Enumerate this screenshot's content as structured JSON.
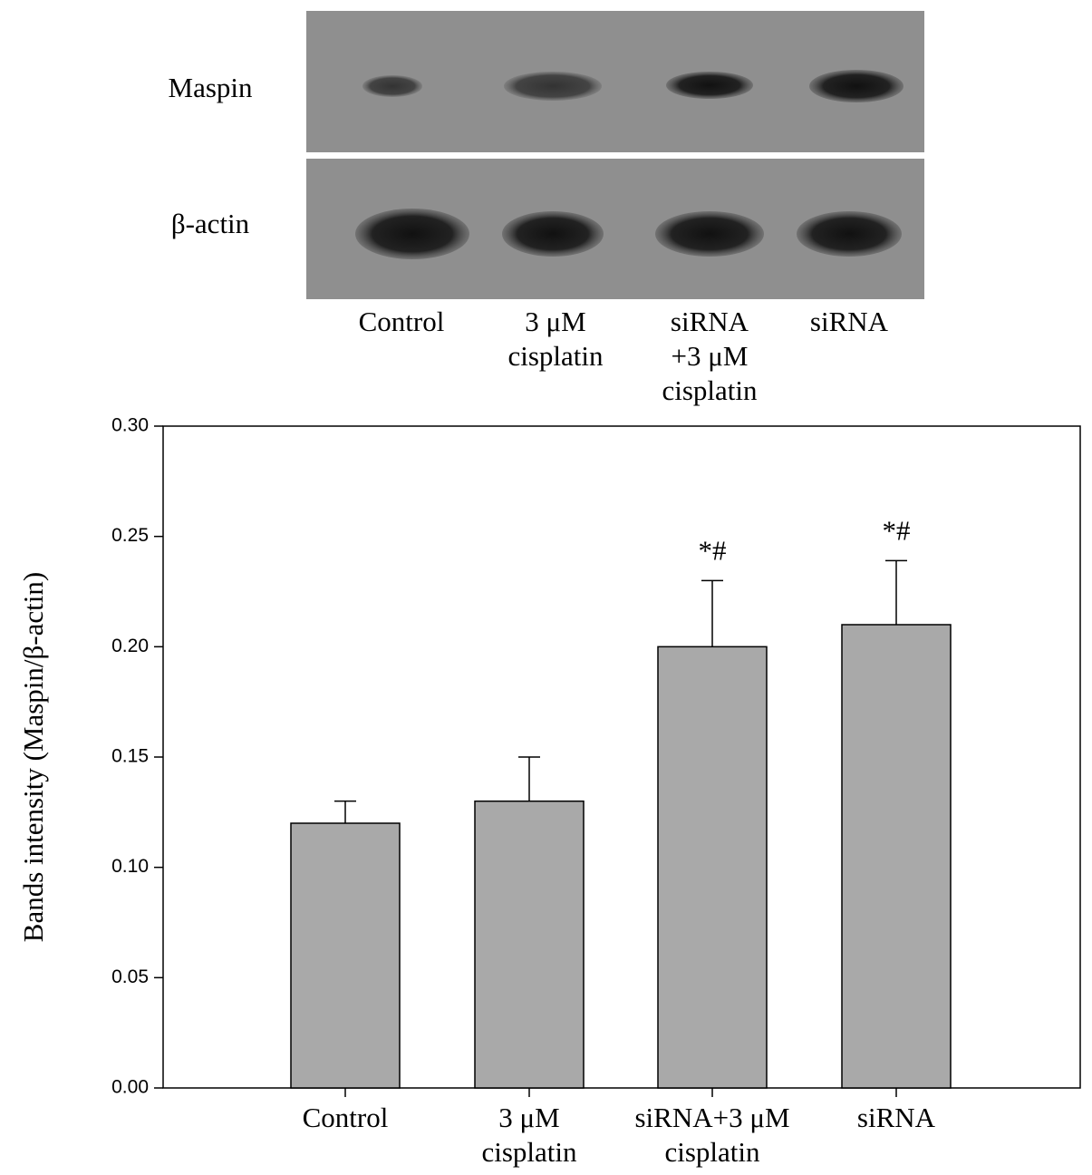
{
  "blot": {
    "rows": [
      "Maspin",
      "β-actin"
    ],
    "lanes": [
      [
        "Control"
      ],
      [
        "3 μM",
        "cisplatin"
      ],
      [
        "siRNA",
        "+3 μM",
        "cisplatin"
      ],
      [
        "siRNA"
      ]
    ]
  },
  "chart_data": {
    "type": "bar",
    "ylabel": "Bands intensity  (Maspin/β-actin)",
    "categories": [
      [
        "Control"
      ],
      [
        "3 μM",
        "cisplatin"
      ],
      [
        "siRNA+3 μM",
        "cisplatin"
      ],
      [
        "siRNA"
      ]
    ],
    "values": [
      0.12,
      0.13,
      0.2,
      0.21
    ],
    "errors": [
      0.01,
      0.02,
      0.03,
      0.029
    ],
    "value_annotations": [
      null,
      null,
      "*#",
      "*#"
    ],
    "color": "#a9a9a9",
    "ylim": [
      0,
      0.3
    ],
    "yticks": [
      {
        "value": 0,
        "label": "0.00"
      },
      {
        "value": 0.05,
        "label": "0.05"
      },
      {
        "value": 0.1,
        "label": "0.10"
      },
      {
        "value": 0.15,
        "label": "0.15"
      },
      {
        "value": 0.2,
        "label": "0.20"
      },
      {
        "value": 0.25,
        "label": "0.25"
      },
      {
        "value": 0.3,
        "label": "0.30"
      }
    ]
  }
}
